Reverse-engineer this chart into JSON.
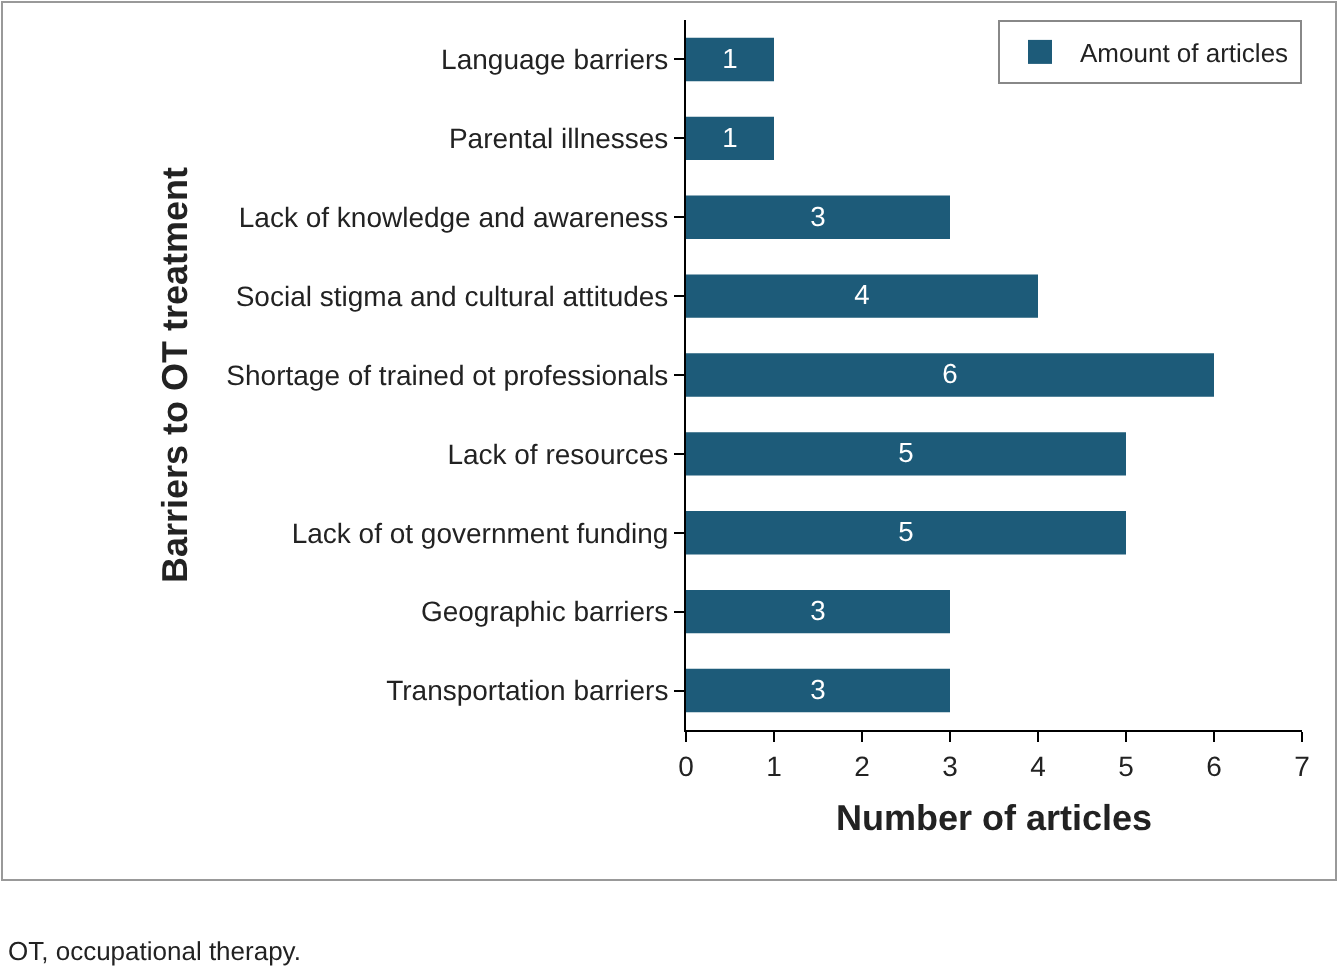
{
  "chart_data": {
    "type": "bar",
    "orientation": "horizontal",
    "xlabel": "Number of articles",
    "ylabel": "Barriers to OT treatment",
    "categories": [
      "Language barriers",
      "Parental illnesses",
      "Lack of knowledge and awareness",
      "Social stigma and cultural attitudes",
      "Shortage of trained ot professionals",
      "Lack of resources",
      "Lack of ot government funding",
      "Geographic barriers",
      "Transportation barriers"
    ],
    "series": [
      {
        "name": "Amount of articles",
        "color": "#1d5b79",
        "values": [
          1,
          1,
          3,
          4,
          6,
          5,
          5,
          3,
          3
        ]
      }
    ],
    "xlim": [
      0,
      7
    ],
    "xticks": [
      0,
      1,
      2,
      3,
      4,
      5,
      6,
      7
    ],
    "data_labels": true,
    "grid": false,
    "legend": "top right",
    "annotations": [
      "OT, occupational therapy."
    ]
  }
}
